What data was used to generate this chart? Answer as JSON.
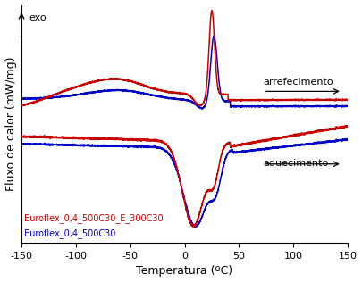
{
  "xlim": [
    -150,
    150
  ],
  "ylim": [
    -2.0,
    1.8
  ],
  "xlabel": "Temperatura (ºC)",
  "ylabel": "Fluxo de calor (mW/mg)",
  "exo_label": "exo",
  "arrefecimento_label": "arrefecimento",
  "aquecimento_label": "aquecimento",
  "legend_red": "Euroflex_0,4_500C30_E_300C30",
  "legend_blue": "Euroflex_0,4_500C30",
  "red_color": "#cc0000",
  "blue_color": "#0000cc",
  "bg_color": "#ffffff"
}
